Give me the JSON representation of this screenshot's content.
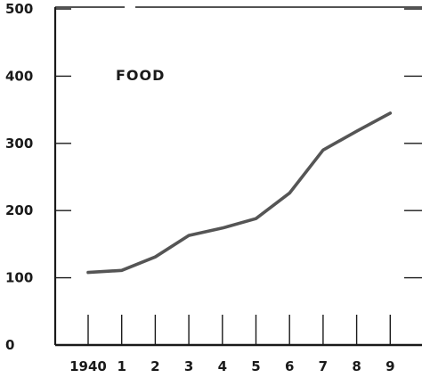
{
  "chart_data": {
    "type": "line",
    "title": "FOOD",
    "xlabel": "",
    "ylabel": "",
    "x_tick_labels": [
      "1940",
      "1",
      "2",
      "3",
      "4",
      "5",
      "6",
      "7",
      "8",
      "9"
    ],
    "y_tick_labels": [
      "0",
      "100",
      "200",
      "300",
      "400",
      "500"
    ],
    "ylim": [
      0,
      500
    ],
    "grid": false,
    "series": [
      {
        "x": [
          1940,
          1941,
          1942,
          1943,
          1944,
          1945,
          1946,
          1947,
          1948,
          1949
        ],
        "values": [
          108,
          111,
          131,
          163,
          174,
          188,
          226,
          290,
          318,
          345
        ]
      }
    ],
    "colors": {
      "line": "#555555",
      "axis": "#1a1a1a"
    }
  }
}
